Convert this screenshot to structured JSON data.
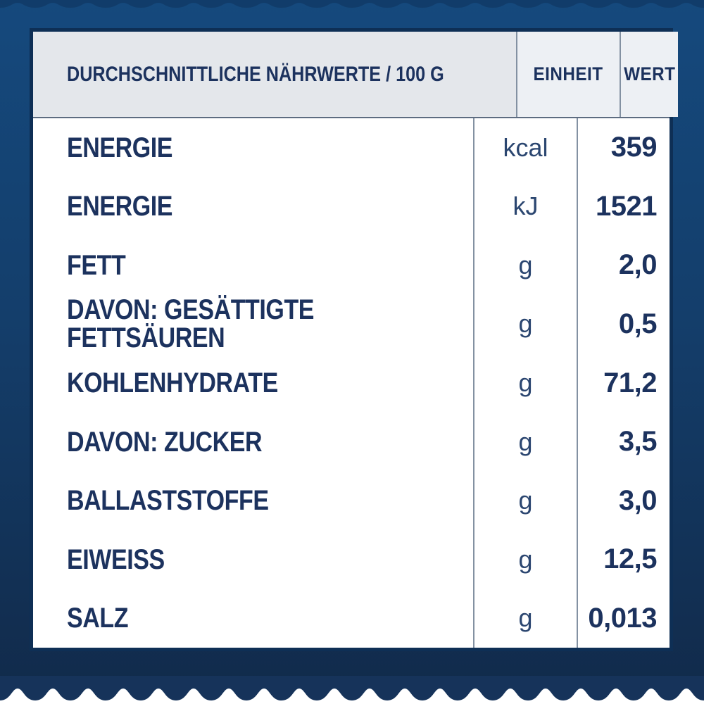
{
  "colors": {
    "background_top": "#15497D",
    "background_mid": "#143E6B",
    "background_bottom": "#112A4A",
    "frame_border": "#0E2F55",
    "header_cell_bg": "#E4E7EB",
    "header_cell_bg_light": "#EDF0F4",
    "column_separator": "#8391A2",
    "header_underline": "#5D6C80",
    "text_navy": "#1C325E",
    "unit_navy": "#2B4670",
    "scallop_navy": "#16335A"
  },
  "table": {
    "header": {
      "nutrients": "DURCHSCHNITTLICHE NÄHRWERTE / 100 G",
      "unit": "EINHEIT",
      "value": "WERT"
    },
    "rows": [
      {
        "label": "ENERGIE",
        "unit": "kcal",
        "value": "359"
      },
      {
        "label": "ENERGIE",
        "unit": "kJ",
        "value": "1521"
      },
      {
        "label": "FETT",
        "unit": "g",
        "value": "2,0"
      },
      {
        "label": "DAVON: GESÄTTIGTE FETTSÄUREN",
        "unit": "g",
        "value": "0,5"
      },
      {
        "label": "KOHLENHYDRATE",
        "unit": "g",
        "value": "71,2"
      },
      {
        "label": "DAVON: ZUCKER",
        "unit": "g",
        "value": "3,5"
      },
      {
        "label": "BALLASTSTOFFE",
        "unit": "g",
        "value": "3,0"
      },
      {
        "label": "EIWEISS",
        "unit": "g",
        "value": "12,5"
      },
      {
        "label": "SALZ",
        "unit": "g",
        "value": "0,013"
      }
    ]
  }
}
